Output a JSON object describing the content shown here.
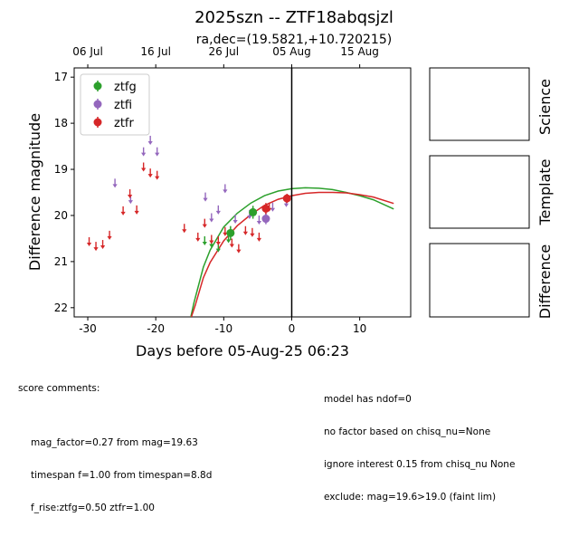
{
  "title": "2025szn -- ZTF18abqsjzl",
  "subtitle": "ra,dec=(19.5821,+10.720215)",
  "chart_data": {
    "type": "scatter",
    "title": "2025szn -- ZTF18abqsjzl",
    "subtitle": "ra,dec=(19.5821,+10.720215)",
    "xlabel": "Days before 05-Aug-25 06:23",
    "ylabel": "Difference magnitude",
    "xlim": [
      -32,
      17.5
    ],
    "ylim": [
      22.2,
      16.8
    ],
    "y_inverted": true,
    "xticks": [
      -30,
      -20,
      -10,
      0,
      10
    ],
    "yticks": [
      17,
      18,
      19,
      20,
      21,
      22
    ],
    "top_axis_ticks": [
      {
        "x": -30,
        "label": "06 Jul"
      },
      {
        "x": -20,
        "label": "16 Jul"
      },
      {
        "x": -10,
        "label": "26 Jul"
      },
      {
        "x": 0,
        "label": "05 Aug"
      },
      {
        "x": 10,
        "label": "15 Aug"
      }
    ],
    "vertical_line_x": 0,
    "legend": {
      "placement": "top-left",
      "entries": [
        "ztfg",
        "ztfi",
        "ztfr"
      ]
    },
    "colors": {
      "ztfg": "#2ca02c",
      "ztfi": "#9467bd",
      "ztfr": "#d62728"
    },
    "series": [
      {
        "name": "ztfg",
        "color": "#2ca02c",
        "detections": [
          {
            "x": -9,
            "y": 20.38,
            "err": 0.15
          },
          {
            "x": -5.7,
            "y": 19.93,
            "err": 0.14
          }
        ],
        "upper_limits": [
          {
            "x": -12.8,
            "y": 20.55
          },
          {
            "x": -11.8,
            "y": 20.6
          },
          {
            "x": -10.8,
            "y": 20.7
          },
          {
            "x": -9.3,
            "y": 20.5
          }
        ]
      },
      {
        "name": "ztfi",
        "color": "#9467bd",
        "detections": [
          {
            "x": -3.8,
            "y": 20.07,
            "err": 0.12
          }
        ],
        "upper_limits": [
          {
            "x": -26,
            "y": 19.3
          },
          {
            "x": -23.7,
            "y": 19.65
          },
          {
            "x": -21.8,
            "y": 18.62
          },
          {
            "x": -20.8,
            "y": 18.37
          },
          {
            "x": -19.8,
            "y": 18.62
          },
          {
            "x": -12.7,
            "y": 19.6
          },
          {
            "x": -11.8,
            "y": 20.05
          },
          {
            "x": -10.8,
            "y": 19.88
          },
          {
            "x": -9.8,
            "y": 19.42
          },
          {
            "x": -8.3,
            "y": 20.08
          },
          {
            "x": -6.2,
            "y": 19.98
          },
          {
            "x": -4.8,
            "y": 20.1
          },
          {
            "x": -3.8,
            "y": 20.05
          },
          {
            "x": -2.8,
            "y": 19.82
          },
          {
            "x": -0.8,
            "y": 19.72
          }
        ]
      },
      {
        "name": "ztfr",
        "color": "#d62728",
        "detections": [
          {
            "x": -3.8,
            "y": 19.85,
            "err": 0.12
          },
          {
            "x": -0.7,
            "y": 19.63,
            "err": 0.1
          }
        ],
        "upper_limits": [
          {
            "x": -29.8,
            "y": 20.57
          },
          {
            "x": -28.8,
            "y": 20.67
          },
          {
            "x": -27.8,
            "y": 20.63
          },
          {
            "x": -26.8,
            "y": 20.43
          },
          {
            "x": -24.8,
            "y": 19.9
          },
          {
            "x": -23.8,
            "y": 19.53
          },
          {
            "x": -22.8,
            "y": 19.88
          },
          {
            "x": -21.8,
            "y": 18.95
          },
          {
            "x": -20.8,
            "y": 19.08
          },
          {
            "x": -19.8,
            "y": 19.13
          },
          {
            "x": -15.8,
            "y": 20.28
          },
          {
            "x": -13.8,
            "y": 20.47
          },
          {
            "x": -12.8,
            "y": 20.17
          },
          {
            "x": -11.8,
            "y": 20.52
          },
          {
            "x": -10.8,
            "y": 20.55
          },
          {
            "x": -9.8,
            "y": 20.35
          },
          {
            "x": -8.8,
            "y": 20.6
          },
          {
            "x": -7.8,
            "y": 20.72
          },
          {
            "x": -6.8,
            "y": 20.33
          },
          {
            "x": -5.8,
            "y": 20.37
          },
          {
            "x": -4.8,
            "y": 20.47
          },
          {
            "x": -3.3,
            "y": 19.82
          }
        ]
      }
    ],
    "model_curves": [
      {
        "name": "ztfg",
        "color": "#2ca02c",
        "points": [
          [
            -15,
            22.3
          ],
          [
            -14.4,
            21.9
          ],
          [
            -13,
            21.12
          ],
          [
            -12,
            20.75
          ],
          [
            -10,
            20.25
          ],
          [
            -8,
            19.95
          ],
          [
            -6,
            19.73
          ],
          [
            -4,
            19.57
          ],
          [
            -2,
            19.47
          ],
          [
            0,
            19.42
          ],
          [
            2,
            19.4
          ],
          [
            4,
            19.41
          ],
          [
            6,
            19.44
          ],
          [
            8,
            19.5
          ],
          [
            10,
            19.57
          ],
          [
            12,
            19.66
          ],
          [
            15,
            19.86
          ]
        ]
      },
      {
        "name": "ztfr",
        "color": "#d62728",
        "points": [
          [
            -15,
            22.3
          ],
          [
            -14.2,
            21.95
          ],
          [
            -13,
            21.35
          ],
          [
            -12,
            21.02
          ],
          [
            -10,
            20.55
          ],
          [
            -8,
            20.22
          ],
          [
            -6,
            19.98
          ],
          [
            -4,
            19.78
          ],
          [
            -2,
            19.65
          ],
          [
            0,
            19.57
          ],
          [
            2,
            19.52
          ],
          [
            4,
            19.5
          ],
          [
            6,
            19.5
          ],
          [
            8,
            19.51
          ],
          [
            10,
            19.55
          ],
          [
            12,
            19.6
          ],
          [
            15,
            19.74
          ]
        ]
      }
    ]
  },
  "side_panels": [
    "Science",
    "Template",
    "Difference"
  ],
  "score_comments": {
    "header": "score comments:",
    "lines": [
      "mag_factor=0.27 from mag=19.63",
      "timespan f=1.00 from timespan=8.8d",
      "f_rise:ztfg=0.50 ztfr=1.00"
    ]
  },
  "model_comments": [
    "model has ndof=0",
    "no factor based on chisq_nu=None",
    "ignore interest 0.15 from chisq_nu None",
    "exclude: mag=19.6>19.0 (faint lim)"
  ]
}
